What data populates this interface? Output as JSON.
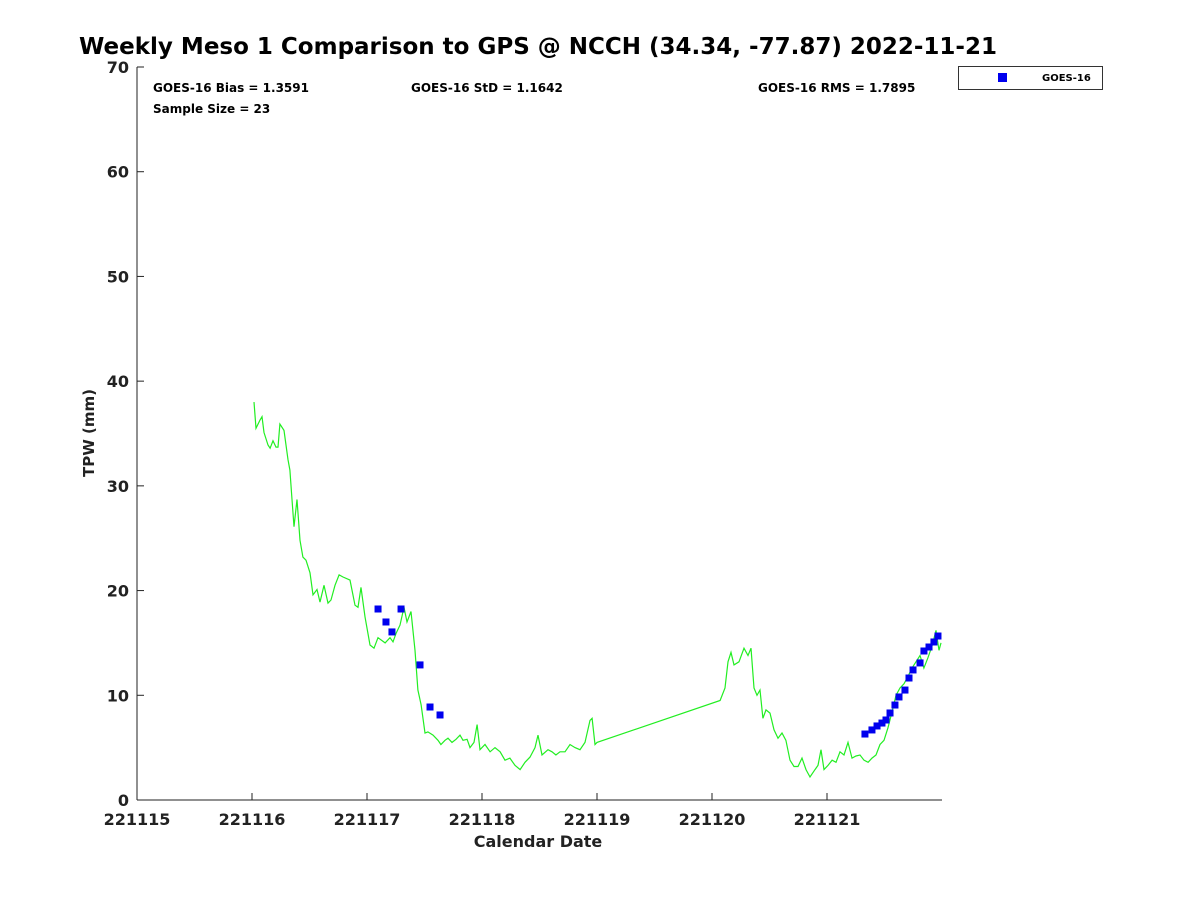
{
  "chart_data": {
    "type": "scatter",
    "title": "Weekly Meso 1 Comparison to GPS @ NCCH (34.34, -77.87) 2022-11-21",
    "xlabel": "Calendar Date",
    "ylabel": "TPW (mm)",
    "x_units": "days since 221115",
    "xlim": [
      0,
      7
    ],
    "ylim": [
      0,
      70
    ],
    "x_ticks": [
      0,
      1,
      2,
      3,
      4,
      5,
      6
    ],
    "x_tick_labels": [
      "221115",
      "221116",
      "221117",
      "221118",
      "221119",
      "221120",
      "221121"
    ],
    "y_ticks": [
      0,
      10,
      20,
      30,
      40,
      50,
      60,
      70
    ],
    "y_tick_labels": [
      "0",
      "10",
      "20",
      "30",
      "40",
      "50",
      "60",
      "70"
    ],
    "grid": false,
    "legend": {
      "placement": "outside-top-right",
      "entries": [
        "GOES-16"
      ]
    },
    "stats": {
      "bias": "GOES-16 Bias = 1.3591",
      "std": "GOES-16 StD = 1.1642",
      "rms": "GOES-16 RMS = 1.7895",
      "sample": "Sample Size = 23"
    },
    "colors": {
      "goes": "#0000ee",
      "gps": "#22ee22"
    },
    "series": [
      {
        "name": "GPS",
        "kind": "line",
        "points": [
          [
            1.017,
            38.0
          ],
          [
            1.035,
            35.5
          ],
          [
            1.07,
            36.3
          ],
          [
            1.087,
            36.6
          ],
          [
            1.104,
            35.1
          ],
          [
            1.139,
            33.9
          ],
          [
            1.157,
            33.6
          ],
          [
            1.183,
            34.3
          ],
          [
            1.209,
            33.7
          ],
          [
            1.226,
            33.7
          ],
          [
            1.243,
            35.9
          ],
          [
            1.278,
            35.3
          ],
          [
            1.313,
            32.5
          ],
          [
            1.33,
            31.5
          ],
          [
            1.348,
            28.7
          ],
          [
            1.365,
            26.1
          ],
          [
            1.391,
            28.7
          ],
          [
            1.417,
            24.8
          ],
          [
            1.443,
            23.2
          ],
          [
            1.47,
            22.9
          ],
          [
            1.504,
            21.7
          ],
          [
            1.53,
            19.6
          ],
          [
            1.565,
            20.1
          ],
          [
            1.591,
            18.9
          ],
          [
            1.626,
            20.5
          ],
          [
            1.661,
            18.8
          ],
          [
            1.687,
            19.1
          ],
          [
            1.722,
            20.5
          ],
          [
            1.757,
            21.5
          ],
          [
            1.791,
            21.3
          ],
          [
            1.852,
            21.0
          ],
          [
            1.896,
            18.6
          ],
          [
            1.922,
            18.4
          ],
          [
            1.948,
            20.3
          ],
          [
            1.983,
            17.5
          ],
          [
            2.026,
            14.8
          ],
          [
            2.061,
            14.5
          ],
          [
            2.096,
            15.5
          ],
          [
            2.157,
            15.0
          ],
          [
            2.2,
            15.5
          ],
          [
            2.226,
            15.1
          ],
          [
            2.252,
            15.9
          ],
          [
            2.287,
            16.7
          ],
          [
            2.322,
            18.4
          ],
          [
            2.348,
            17.0
          ],
          [
            2.383,
            18.0
          ],
          [
            2.417,
            14.3
          ],
          [
            2.443,
            10.5
          ],
          [
            2.47,
            9.1
          ],
          [
            2.504,
            6.4
          ],
          [
            2.53,
            6.5
          ],
          [
            2.574,
            6.2
          ],
          [
            2.617,
            5.7
          ],
          [
            2.643,
            5.3
          ],
          [
            2.678,
            5.7
          ],
          [
            2.704,
            5.9
          ],
          [
            2.739,
            5.5
          ],
          [
            2.774,
            5.8
          ],
          [
            2.809,
            6.2
          ],
          [
            2.835,
            5.7
          ],
          [
            2.87,
            5.8
          ],
          [
            2.896,
            5.0
          ],
          [
            2.93,
            5.5
          ],
          [
            2.957,
            7.2
          ],
          [
            2.983,
            4.8
          ],
          [
            3.026,
            5.3
          ],
          [
            3.07,
            4.6
          ],
          [
            3.113,
            5.0
          ],
          [
            3.157,
            4.6
          ],
          [
            3.2,
            3.8
          ],
          [
            3.243,
            4.0
          ],
          [
            3.287,
            3.3
          ],
          [
            3.331,
            2.9
          ],
          [
            3.374,
            3.6
          ],
          [
            3.417,
            4.1
          ],
          [
            3.461,
            5.0
          ],
          [
            3.487,
            6.2
          ],
          [
            3.522,
            4.3
          ],
          [
            3.574,
            4.8
          ],
          [
            3.609,
            4.6
          ],
          [
            3.643,
            4.3
          ],
          [
            3.678,
            4.6
          ],
          [
            3.722,
            4.6
          ],
          [
            3.765,
            5.3
          ],
          [
            3.809,
            5.0
          ],
          [
            3.852,
            4.8
          ],
          [
            3.896,
            5.5
          ],
          [
            3.939,
            7.6
          ],
          [
            3.957,
            7.8
          ],
          [
            3.983,
            5.3
          ],
          [
            4.0,
            5.5
          ],
          [
            5.07,
            9.5
          ],
          [
            5.113,
            10.7
          ],
          [
            5.139,
            13.2
          ],
          [
            5.165,
            14.1
          ],
          [
            5.191,
            12.9
          ],
          [
            5.235,
            13.2
          ],
          [
            5.278,
            14.5
          ],
          [
            5.313,
            13.8
          ],
          [
            5.339,
            14.5
          ],
          [
            5.365,
            10.7
          ],
          [
            5.391,
            10.0
          ],
          [
            5.417,
            10.5
          ],
          [
            5.443,
            7.8
          ],
          [
            5.47,
            8.6
          ],
          [
            5.504,
            8.3
          ],
          [
            5.539,
            6.7
          ],
          [
            5.574,
            5.9
          ],
          [
            5.609,
            6.4
          ],
          [
            5.643,
            5.7
          ],
          [
            5.678,
            3.8
          ],
          [
            5.713,
            3.2
          ],
          [
            5.748,
            3.2
          ],
          [
            5.783,
            4.0
          ],
          [
            5.817,
            2.9
          ],
          [
            5.852,
            2.2
          ],
          [
            5.896,
            2.9
          ],
          [
            5.922,
            3.3
          ],
          [
            5.948,
            4.8
          ],
          [
            5.974,
            2.9
          ],
          [
            6.009,
            3.3
          ],
          [
            6.044,
            3.8
          ],
          [
            6.078,
            3.6
          ],
          [
            6.113,
            4.6
          ],
          [
            6.148,
            4.3
          ],
          [
            6.183,
            5.5
          ],
          [
            6.217,
            4.0
          ],
          [
            6.252,
            4.2
          ],
          [
            6.287,
            4.3
          ],
          [
            6.322,
            3.8
          ],
          [
            6.357,
            3.6
          ],
          [
            6.391,
            4.0
          ],
          [
            6.426,
            4.3
          ],
          [
            6.461,
            5.3
          ],
          [
            6.496,
            5.7
          ],
          [
            6.53,
            6.9
          ],
          [
            6.565,
            8.4
          ],
          [
            6.6,
            10.0
          ],
          [
            6.635,
            10.7
          ],
          [
            6.67,
            11.1
          ],
          [
            6.704,
            11.8
          ],
          [
            6.739,
            12.6
          ],
          [
            6.774,
            13.2
          ],
          [
            6.809,
            13.8
          ],
          [
            6.843,
            12.6
          ],
          [
            6.878,
            13.6
          ],
          [
            6.913,
            14.7
          ],
          [
            6.948,
            16.2
          ],
          [
            6.974,
            14.3
          ],
          [
            6.991,
            15.0
          ]
        ]
      },
      {
        "name": "GOES-16",
        "kind": "scatter",
        "points": [
          [
            2.096,
            18.24
          ],
          [
            2.165,
            17.0
          ],
          [
            2.217,
            16.05
          ],
          [
            2.296,
            18.24
          ],
          [
            2.461,
            12.9
          ],
          [
            2.548,
            8.88
          ],
          [
            2.635,
            8.12
          ],
          [
            6.33,
            6.3
          ],
          [
            6.391,
            6.69
          ],
          [
            6.435,
            7.07
          ],
          [
            6.478,
            7.35
          ],
          [
            6.513,
            7.64
          ],
          [
            6.548,
            8.31
          ],
          [
            6.591,
            9.07
          ],
          [
            6.626,
            9.84
          ],
          [
            6.678,
            10.5
          ],
          [
            6.713,
            11.65
          ],
          [
            6.748,
            12.42
          ],
          [
            6.809,
            13.09
          ],
          [
            6.843,
            14.23
          ],
          [
            6.887,
            14.61
          ],
          [
            6.93,
            15.09
          ],
          [
            6.965,
            15.66
          ]
        ]
      }
    ]
  }
}
